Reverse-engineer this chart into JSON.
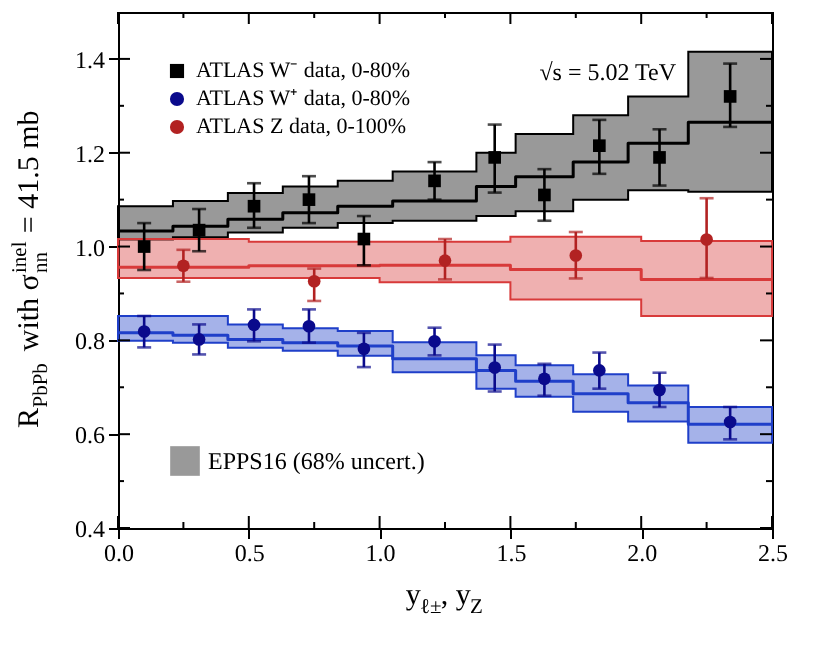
{
  "chart_data": {
    "type": "scatter",
    "xlabel": "y$_{ℓ±}$, y$_{Z}$",
    "ylabel": "R$_{PbPb}$ with σ$_{nn}$$^{inel}$ = 41.5 mb",
    "annotations": [
      "√s = 5.02 TeV"
    ],
    "xlim": [
      0,
      2.5
    ],
    "ylim": [
      0.4,
      1.5
    ],
    "xticks": [
      {
        "value": 0,
        "label": "0.0"
      },
      {
        "value": 0.25,
        "label": null
      },
      0.5,
      {
        "value": 0.75,
        "label": null
      },
      {
        "value": 1,
        "label": "1.0"
      },
      {
        "value": 1.25,
        "label": null
      },
      1.5,
      {
        "value": 1.75,
        "label": null
      },
      {
        "value": 2,
        "label": "2.0"
      },
      {
        "value": 2.25,
        "label": null
      },
      2.5
    ],
    "yticks": [
      0.4,
      {
        "value": 0.5,
        "label": null
      },
      0.6,
      {
        "value": 0.7,
        "label": null
      },
      0.8,
      {
        "value": 0.9,
        "label": null
      },
      {
        "value": 1,
        "label": "1.0"
      },
      {
        "value": 1.1,
        "label": null
      },
      1.2,
      {
        "value": 1.3,
        "label": null
      },
      1.4
    ],
    "grid": false,
    "legend": "top left",
    "series": [
      {
        "type": "step",
        "name": "EPPS16 (68% uncert.)",
        "color": "#000000",
        "x": [
          0,
          0.21,
          0.42,
          0.63,
          0.84,
          1.05,
          1.37,
          1.52,
          1.74,
          1.95,
          2.18,
          2.5
        ],
        "values": [
          1.033,
          1.043,
          1.058,
          1.072,
          1.086,
          1.097,
          1.128,
          1.149,
          1.18,
          1.22,
          1.265,
          1.265
        ],
        "lower": [
          1.015,
          1.02,
          1.03,
          1.04,
          1.05,
          1.055,
          1.065,
          1.075,
          1.1,
          1.12,
          1.117,
          1.117
        ],
        "upper": [
          1.086,
          1.097,
          1.114,
          1.128,
          1.14,
          1.16,
          1.2,
          1.24,
          1.28,
          1.32,
          1.415,
          1.415
        ]
      },
      {
        "type": "step",
        "color": "#1f3fc9",
        "x": [
          0,
          0.21,
          0.42,
          0.63,
          0.84,
          1.05,
          1.37,
          1.52,
          1.74,
          1.95,
          2.18,
          2.5
        ],
        "values": [
          0.816,
          0.811,
          0.802,
          0.795,
          0.788,
          0.761,
          0.736,
          0.713,
          0.686,
          0.667,
          0.621,
          0.621
        ],
        "lower": [
          0.799,
          0.795,
          0.784,
          0.778,
          0.767,
          0.732,
          0.697,
          0.68,
          0.648,
          0.627,
          0.582,
          0.582
        ],
        "upper": [
          0.852,
          0.852,
          0.834,
          0.826,
          0.82,
          0.796,
          0.768,
          0.747,
          0.728,
          0.704,
          0.658,
          0.658
        ]
      },
      {
        "type": "step",
        "color": "#d83a3a",
        "x": [
          0,
          0.5,
          1.0,
          1.5,
          2.0,
          2.5
        ],
        "values": [
          0.956,
          0.959,
          0.96,
          0.951,
          0.93,
          0.93
        ],
        "lower": [
          0.933,
          0.933,
          0.924,
          0.887,
          0.852,
          0.852
        ],
        "upper": [
          1.016,
          1.01,
          1.01,
          1.021,
          1.012,
          1.012
        ]
      },
      {
        "name": "ATLAS W⁻ data, 0-80%",
        "color": "#000000",
        "marker": "square",
        "x": [
          0.1,
          0.31,
          0.52,
          0.73,
          0.94,
          1.21,
          1.44,
          1.63,
          1.84,
          2.07,
          2.34
        ],
        "values": [
          1.0,
          1.035,
          1.086,
          1.1,
          1.016,
          1.14,
          1.19,
          1.11,
          1.215,
          1.19,
          1.32
        ],
        "errors": [
          [
            0.95,
            1.05
          ],
          [
            0.99,
            1.08
          ],
          [
            1.04,
            1.135
          ],
          [
            1.05,
            1.15
          ],
          [
            0.96,
            1.065
          ],
          [
            1.1,
            1.18
          ],
          [
            1.115,
            1.26
          ],
          [
            1.055,
            1.165
          ],
          [
            1.155,
            1.27
          ],
          [
            1.13,
            1.25
          ],
          [
            1.255,
            1.39
          ]
        ]
      },
      {
        "name": "ATLAS W⁺ data, 0-80%",
        "color": "#0a0a8c",
        "marker": "circle",
        "x": [
          0.1,
          0.31,
          0.52,
          0.73,
          0.94,
          1.21,
          1.44,
          1.63,
          1.84,
          2.07,
          2.34
        ],
        "values": [
          0.819,
          0.802,
          0.833,
          0.83,
          0.782,
          0.798,
          0.742,
          0.718,
          0.736,
          0.694,
          0.626
        ],
        "errors": [
          [
            0.785,
            0.852
          ],
          [
            0.77,
            0.834
          ],
          [
            0.798,
            0.866
          ],
          [
            0.795,
            0.866
          ],
          [
            0.743,
            0.816
          ],
          [
            0.768,
            0.827
          ],
          [
            0.691,
            0.791
          ],
          [
            0.682,
            0.75
          ],
          [
            0.697,
            0.774
          ],
          [
            0.658,
            0.731
          ],
          [
            0.589,
            0.658
          ]
        ]
      },
      {
        "name": "ATLAS Z data, 0-100%",
        "color": "#b22222",
        "marker": "circle",
        "x": [
          0.25,
          0.75,
          1.25,
          1.75,
          2.25
        ],
        "values": [
          0.959,
          0.926,
          0.97,
          0.981,
          1.015
        ],
        "errors": [
          [
            0.925,
            0.993
          ],
          [
            0.884,
            0.953
          ],
          [
            0.93,
            1.016
          ],
          [
            0.932,
            1.031
          ],
          [
            0.933,
            1.103
          ]
        ]
      }
    ]
  }
}
